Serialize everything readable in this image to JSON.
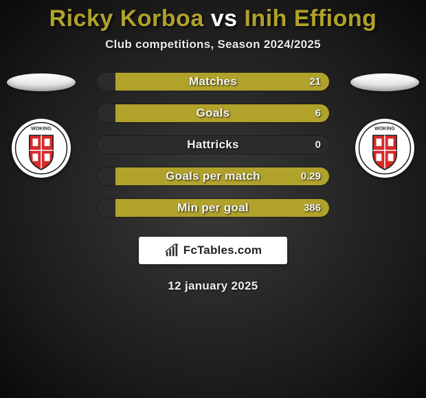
{
  "title": {
    "player1": "Ricky Korboa",
    "vs": "vs",
    "player2": "Inih Effiong",
    "color_p1": "#b0a22a",
    "color_vs": "#ffffff",
    "color_p2": "#b0a22a"
  },
  "subtitle": "Club competitions, Season 2024/2025",
  "date": "12 january 2025",
  "colors": {
    "bar_track": "#2b2b2b",
    "fill_left": "#b0a22a",
    "fill_right": "#b0a22a",
    "ellipse_left": "#e8e8e8",
    "ellipse_right": "#e8e8e8"
  },
  "bars": [
    {
      "label": "Matches",
      "left": "",
      "right": "21",
      "left_pct": 0,
      "right_pct": 92
    },
    {
      "label": "Goals",
      "left": "",
      "right": "6",
      "left_pct": 0,
      "right_pct": 92
    },
    {
      "label": "Hattricks",
      "left": "",
      "right": "0",
      "left_pct": 0,
      "right_pct": 0
    },
    {
      "label": "Goals per match",
      "left": "",
      "right": "0.29",
      "left_pct": 0,
      "right_pct": 92
    },
    {
      "label": "Min per goal",
      "left": "",
      "right": "386",
      "left_pct": 0,
      "right_pct": 92
    }
  ],
  "brand": "FcTables.com",
  "crest": {
    "outer_text_top": "WOKING",
    "shield_fill": "#d82a2a",
    "shield_stroke": "#1a1a1a"
  }
}
